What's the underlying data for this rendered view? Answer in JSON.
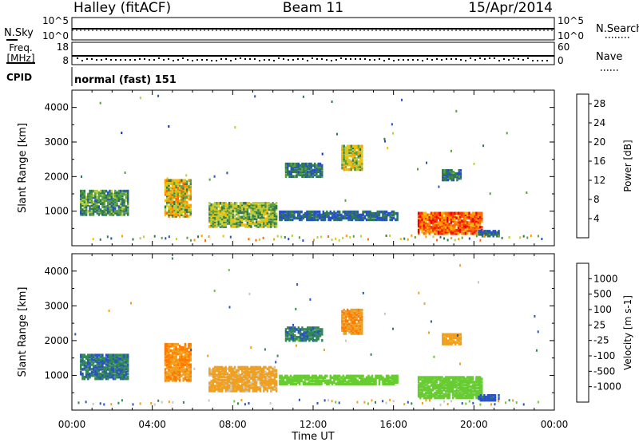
{
  "header": {
    "station": "Halley (fitACF)",
    "beam": "Beam 11",
    "date": "15/Apr/2014"
  },
  "status_panels": {
    "nsky": {
      "label": "N.Sky",
      "ticks": [
        "10^5",
        "10^0"
      ]
    },
    "nsearch": {
      "label": "N.Search",
      "ticks": [
        "10^5",
        "10^0"
      ]
    },
    "freq": {
      "label_line1": "Freq.",
      "label_line2": "[MHz]",
      "ticks": [
        "18",
        "8"
      ]
    },
    "nave": {
      "label": "Nave",
      "ticks": [
        "60",
        "0"
      ]
    },
    "cpid": {
      "label": "CPID",
      "value": "normal (fast) 151"
    }
  },
  "colors": {
    "power_scale": [
      "#1020e0",
      "#2850c0",
      "#2e7a4e",
      "#5aa040",
      "#b8d040",
      "#f0c000",
      "#ff9a00",
      "#ff6a00",
      "#ff3000",
      "#ee0000"
    ],
    "velocity_scale": [
      "#1a2ab8",
      "#2b52c0",
      "#2e8a50",
      "#66cc30",
      "#c8c8c0",
      "#f0a020",
      "#ff7a00",
      "#ff4500",
      "#e81010"
    ]
  },
  "chart_data": [
    {
      "type": "heatmap",
      "title": "Power",
      "xlabel": "Time UT",
      "ylabel": "Slant Range [km]",
      "xlim": [
        0,
        24
      ],
      "ylim": [
        0,
        4500
      ],
      "x_ticks": [
        "00:00",
        "04:00",
        "08:00",
        "12:00",
        "16:00",
        "20:00",
        "00:00"
      ],
      "y_ticks": [
        "1000",
        "2000",
        "3000",
        "4000"
      ],
      "colorbar": {
        "label": "Power [dB]",
        "ticks": [
          "4",
          "8",
          "12",
          "16",
          "20",
          "24",
          "28"
        ],
        "range": [
          0,
          30
        ]
      },
      "regions": [
        {
          "t0": 0.4,
          "t1": 2.8,
          "r0": 900,
          "r1": 1600,
          "value": 9,
          "spread": 4
        },
        {
          "t0": 4.6,
          "t1": 5.9,
          "r0": 850,
          "r1": 1900,
          "value": 15,
          "spread": 8
        },
        {
          "t0": 6.8,
          "t1": 10.2,
          "r0": 550,
          "r1": 1250,
          "value": 12,
          "spread": 6
        },
        {
          "t0": 10.3,
          "t1": 16.2,
          "r0": 750,
          "r1": 1000,
          "value": 6,
          "spread": 3
        },
        {
          "t0": 10.6,
          "t1": 12.4,
          "r0": 2000,
          "r1": 2400,
          "value": 7,
          "spread": 3
        },
        {
          "t0": 13.4,
          "t1": 14.4,
          "r0": 2200,
          "r1": 2900,
          "value": 14,
          "spread": 6
        },
        {
          "t0": 17.2,
          "t1": 20.4,
          "r0": 350,
          "r1": 950,
          "value": 23,
          "spread": 6
        },
        {
          "t0": 18.4,
          "t1": 19.3,
          "r0": 1900,
          "r1": 2200,
          "value": 7,
          "spread": 3
        },
        {
          "t0": 20.2,
          "t1": 21.2,
          "r0": 280,
          "r1": 420,
          "value": 6,
          "spread": 3
        }
      ]
    },
    {
      "type": "heatmap",
      "title": "Velocity",
      "xlabel": "Time UT",
      "ylabel": "Slant Range [km]",
      "xlim": [
        0,
        24
      ],
      "ylim": [
        0,
        4500
      ],
      "x_ticks": [
        "00:00",
        "04:00",
        "08:00",
        "12:00",
        "16:00",
        "20:00",
        "00:00"
      ],
      "y_ticks": [
        "1000",
        "2000",
        "3000",
        "4000"
      ],
      "colorbar": {
        "label": "Velocity [m s-1]",
        "ticks": [
          "1000",
          "500",
          "100",
          "25",
          "-25",
          "-100",
          "-500",
          "-1000"
        ]
      },
      "regions": [
        {
          "t0": 0.4,
          "t1": 2.8,
          "r0": 900,
          "r1": 1600,
          "value": 90,
          "spread": 60
        },
        {
          "t0": 4.6,
          "t1": 5.9,
          "r0": 850,
          "r1": 1900,
          "value": -480,
          "spread": 200
        },
        {
          "t0": 6.8,
          "t1": 10.2,
          "r0": 550,
          "r1": 1250,
          "value": -200,
          "spread": 120
        },
        {
          "t0": 10.3,
          "t1": 16.2,
          "r0": 750,
          "r1": 1000,
          "value": 0,
          "spread": 20
        },
        {
          "t0": 10.6,
          "t1": 12.4,
          "r0": 2000,
          "r1": 2400,
          "value": 80,
          "spread": 60
        },
        {
          "t0": 13.4,
          "t1": 14.4,
          "r0": 2200,
          "r1": 2900,
          "value": -450,
          "spread": 150
        },
        {
          "t0": 17.2,
          "t1": 20.4,
          "r0": 350,
          "r1": 950,
          "value": 0,
          "spread": 22
        },
        {
          "t0": 18.4,
          "t1": 19.3,
          "r0": 1900,
          "r1": 2200,
          "value": -350,
          "spread": 120
        },
        {
          "t0": 20.2,
          "t1": 21.2,
          "r0": 280,
          "r1": 420,
          "value": 150,
          "spread": 60
        }
      ]
    }
  ]
}
